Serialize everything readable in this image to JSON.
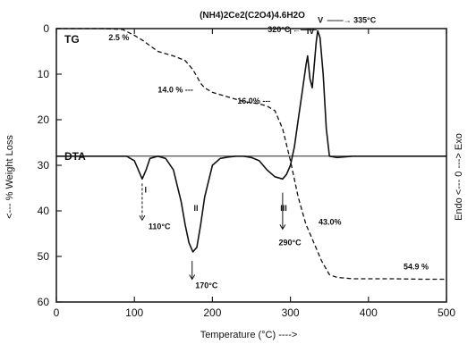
{
  "chart_data": {
    "type": "line",
    "title": "(NH4)2Ce2(C2O4)4.6H2O",
    "xlabel": "Temperature (°C) ---->",
    "ylabel": "<--- % Weight Loss",
    "y2label": "Endo <--- 0 ---> Exo",
    "xlim": [
      0,
      500
    ],
    "ylim": [
      0,
      60
    ],
    "y_inverted": true,
    "grid": false,
    "x_ticks": [
      0,
      100,
      200,
      300,
      400,
      500
    ],
    "y_ticks": [
      0,
      10,
      20,
      30,
      40,
      50,
      60
    ],
    "series": [
      {
        "name": "TG",
        "style": "dashed",
        "x": [
          0,
          60,
          85,
          100,
          110,
          130,
          150,
          165,
          175,
          185,
          190,
          200,
          220,
          240,
          260,
          270,
          280,
          290,
          300,
          310,
          320,
          330,
          340,
          350,
          360,
          380,
          400,
          430,
          470,
          500
        ],
        "y": [
          0,
          0,
          0.2,
          1.5,
          2.5,
          5,
          6,
          7,
          9,
          12,
          13,
          14,
          15,
          16,
          16.5,
          17,
          18,
          22,
          29,
          37,
          43,
          47,
          51,
          54,
          54.6,
          54.9,
          54.9,
          54.9,
          55,
          55
        ]
      },
      {
        "name": "DTA",
        "style": "solid",
        "x": [
          0,
          90,
          100,
          105,
          110,
          115,
          120,
          130,
          140,
          150,
          160,
          165,
          170,
          175,
          180,
          185,
          190,
          200,
          210,
          220,
          230,
          240,
          250,
          260,
          270,
          280,
          290,
          295,
          300,
          305,
          310,
          315,
          320,
          322,
          325,
          328,
          330,
          333,
          335,
          338,
          342,
          346,
          350,
          360,
          380,
          420,
          500
        ],
        "y": [
          28,
          28,
          29,
          31,
          33,
          31,
          28.5,
          28,
          28.5,
          31,
          38,
          43,
          47,
          49,
          48,
          43,
          37,
          30,
          28.5,
          28.2,
          28,
          28,
          28.3,
          29,
          31,
          32.5,
          33,
          32,
          30,
          26,
          20,
          14,
          8,
          6,
          11,
          13,
          9,
          3,
          0.5,
          2,
          10,
          22,
          28,
          28.3,
          28,
          28,
          28
        ]
      }
    ],
    "baselines": [
      {
        "name": "TG",
        "y": 0,
        "x_from": 0,
        "x_to": 130
      },
      {
        "name": "DTA",
        "y": 28,
        "x_from": 0,
        "x_to": 500
      }
    ],
    "annotations": [
      {
        "text": "2.5 %",
        "x": 67,
        "y": 2.5
      },
      {
        "text": "14.0 % ---",
        "x": 130,
        "y": 14
      },
      {
        "text": "16.0% ---",
        "x": 232,
        "y": 16.5
      },
      {
        "text": "43.0%",
        "x": 336,
        "y": 43
      },
      {
        "text": "54.9 %",
        "x": 445,
        "y": 52.8
      },
      {
        "text": "I",
        "x": 113,
        "y": 36
      },
      {
        "text": "110°C",
        "x": 118,
        "y": 44
      },
      {
        "text": "II",
        "x": 176,
        "y": 40
      },
      {
        "text": "170°C",
        "x": 178,
        "y": 57
      },
      {
        "text": "III",
        "x": 287,
        "y": 40
      },
      {
        "text": "290°C",
        "x": 285,
        "y": 47.5
      },
      {
        "text": "IV",
        "x": 321,
        "y": 1.2
      },
      {
        "text": "320°C ←——",
        "x": 271,
        "y": 0.8
      },
      {
        "text": "V",
        "x": 335,
        "y": -1.3
      },
      {
        "text": "——→ 335°C",
        "x": 347,
        "y": -1.3
      }
    ]
  }
}
